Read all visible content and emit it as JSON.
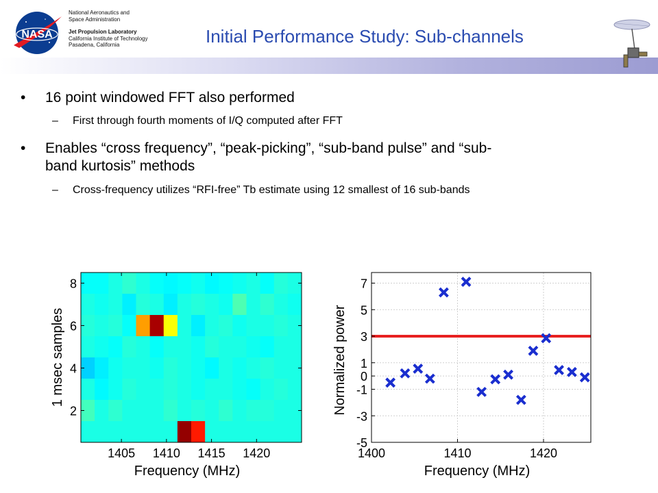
{
  "header": {
    "org_lines": [
      "National Aeronautics and",
      "Space Administration"
    ],
    "lab_name": "Jet Propulsion Laboratory",
    "lab_lines": [
      "California Institute of Technology",
      "Pasadena, California"
    ],
    "logo_text": "NASA",
    "title": "Initial Performance Study: Sub-channels"
  },
  "bullets": [
    {
      "text": "16 point windowed FFT also performed",
      "subs": [
        "First through fourth moments of I/Q computed after FFT"
      ]
    },
    {
      "lines": [
        "Enables “cross frequency”, “peak-picking”, “sub-band pulse” and “sub-",
        "band kurtosis” methods"
      ],
      "subs": [
        "Cross-frequency utilizes “RFI-free” Tb estimate using 12 smallest of 16 sub-bands"
      ]
    }
  ],
  "bullet_symbol": "•",
  "dash_symbol": "–",
  "chart_data": [
    {
      "type": "heatmap",
      "xlabel": "Frequency (MHz)",
      "ylabel": "1 msec samples",
      "x_ticks": [
        1405,
        1410,
        1415,
        1420
      ],
      "y_ticks": [
        2,
        4,
        6,
        8
      ],
      "x_range": [
        1400.5,
        1425
      ],
      "y_range": [
        0.5,
        8.5
      ],
      "columns": 16,
      "rows": 8,
      "colormap": "jet",
      "values_normalized_rows_top_to_bottom": [
        [
          0.38,
          0.38,
          0.4,
          0.42,
          0.4,
          0.38,
          0.37,
          0.38,
          0.39,
          0.37,
          0.38,
          0.39,
          0.4,
          0.38,
          0.41,
          0.4
        ],
        [
          0.4,
          0.39,
          0.4,
          0.36,
          0.41,
          0.4,
          0.36,
          0.4,
          0.41,
          0.4,
          0.39,
          0.45,
          0.4,
          0.42,
          0.4,
          0.39
        ],
        [
          0.41,
          0.4,
          0.41,
          0.38,
          0.72,
          0.96,
          0.62,
          0.4,
          0.36,
          0.4,
          0.41,
          0.39,
          0.4,
          0.4,
          0.41,
          0.4
        ],
        [
          0.4,
          0.39,
          0.38,
          0.41,
          0.4,
          0.38,
          0.4,
          0.4,
          0.39,
          0.41,
          0.4,
          0.4,
          0.39,
          0.38,
          0.4,
          0.4
        ],
        [
          0.33,
          0.36,
          0.39,
          0.4,
          0.4,
          0.39,
          0.41,
          0.4,
          0.39,
          0.37,
          0.4,
          0.39,
          0.4,
          0.41,
          0.4,
          0.4
        ],
        [
          0.4,
          0.37,
          0.39,
          0.41,
          0.4,
          0.4,
          0.41,
          0.4,
          0.39,
          0.4,
          0.4,
          0.39,
          0.38,
          0.4,
          0.41,
          0.4
        ],
        [
          0.44,
          0.4,
          0.42,
          0.4,
          0.4,
          0.4,
          0.42,
          0.4,
          0.41,
          0.4,
          0.42,
          0.4,
          0.41,
          0.41,
          0.4,
          0.4
        ],
        [
          0.4,
          0.4,
          0.4,
          0.4,
          0.4,
          0.4,
          0.4,
          0.98,
          0.85,
          0.4,
          0.4,
          0.4,
          0.4,
          0.4,
          0.4,
          0.4
        ]
      ]
    },
    {
      "type": "scatter",
      "xlabel": "Frequency (MHz)",
      "ylabel": "Normalized power",
      "x_ticks": [
        1400,
        1410,
        1420
      ],
      "y_ticks": [
        -5,
        -3,
        -1,
        0,
        1,
        3,
        5,
        7
      ],
      "xlim": [
        1400,
        1425.5
      ],
      "ylim": [
        -5,
        7.8
      ],
      "marker": "x",
      "marker_color": "#1a2ecf",
      "threshold": 3,
      "threshold_color": "#e82020",
      "points": [
        {
          "x": 1402.2,
          "y": -0.5
        },
        {
          "x": 1403.9,
          "y": 0.2
        },
        {
          "x": 1405.4,
          "y": 0.55
        },
        {
          "x": 1406.8,
          "y": -0.2
        },
        {
          "x": 1408.4,
          "y": 6.3
        },
        {
          "x": 1411.0,
          "y": 7.1
        },
        {
          "x": 1412.8,
          "y": -1.2
        },
        {
          "x": 1414.4,
          "y": -0.25
        },
        {
          "x": 1415.9,
          "y": 0.1
        },
        {
          "x": 1417.4,
          "y": -1.8
        },
        {
          "x": 1418.8,
          "y": 1.9
        },
        {
          "x": 1420.3,
          "y": 2.85
        },
        {
          "x": 1421.8,
          "y": 0.45
        },
        {
          "x": 1423.3,
          "y": 0.3
        },
        {
          "x": 1424.8,
          "y": -0.1
        }
      ]
    }
  ]
}
